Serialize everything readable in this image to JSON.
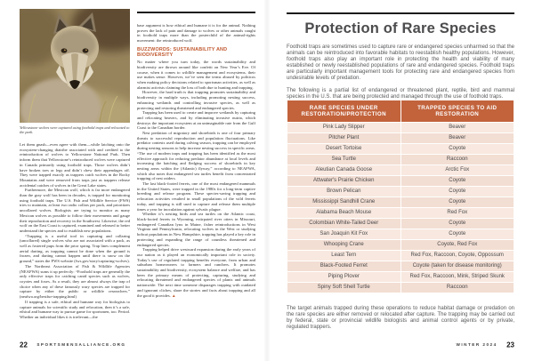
{
  "colors": {
    "accent_orange": "#c2633c",
    "heading_orange": "#c0582e",
    "table_row_peach": "#f8e8df",
    "table_row_peach_alt": "#f3ded3",
    "rule_black": "#1b1b1b"
  },
  "left_page": {
    "photo_caption": "Yellowstone wolves were captured using foothold traps and relocated to the park.",
    "column1": {
      "paragraphs": [
        "Let them gnash—even agree with them—while latching onto the ecosystem-changing diatribe associated with and credited to the reintroduction of wolves to Yellowstone National Park. Then inform them that Yellowstone’s reintroduced wolves were captured in Canada primarily using foothold traps. Those wolves didn’t have broken toes or legs and didn’t chew their appendages off. They were trapped exactly as trappers catch wolves in the Rocky Mountains and were removed from traps just as trappers release accidental catches of wolves in the Great Lake states.",
        "Furthermore, the Mexican wolf, which is far more endangered than the gray wolf has been in decades, is trapped for monitoring using foothold traps. The U.S. Fish and Wildlife Service (FWS) tries to maintain, at least two radio collars per pack, and prioritizes uncollared wolves. Biologists are trying to monitor as many Mexican wolves as possible to follow their movements and gauge their reproduction and recovery in the Southwest. Likewise, the red wolf on the East Coast is captured, examined and released to better understand the species and to establish new populations.",
        "“Trapping is a useful tool in capturing and collaring (uncollared) single wolves who are not associated with a pack, as well as fostered pups from the prior spring. Trap lines complement aerial darting, as trapping cannot be done when the ground is frozen, and darting cannot happen until there is snow on the ground,” states the FWS website (fws.gov/story/capturing-wolves).",
        "The Northeast Association of Fish & Wildlife Agencies (NEAFWA) sums it up perfectly: “Foothold traps are generally the only effective traps for catching canid species such as wolves, coyotes and foxes. As a result, they are almost always the trap of choice when any of these famously wary species are trapped for capture by either the public or wildlife researchers.” (neafwa.org/bestfur-trapping.html)",
        "If trapping is a safe, ethical and humane way for biologists to capture animals for scientific study and relocation, then it’s a safe, ethical and humane way to pursue game for sportsmen, too. Period. Whether an individual likes it is irrelevant—the"
      ]
    },
    "column2": {
      "lead_paragraph": "base argument is how ethical and humane it is for the animal. Nothing proves the lack of pain and damage to wolves or other animals caught in foothold traps more than the posterchild of the animal-rights movement: the reintroduced wolf.",
      "heading": "BUZZWORDS: SUSTAINABILITY AND BIODIVERSITY",
      "paragraphs": [
        "No matter where you turn today, the words sustainability and biodiversity are thrown around like confetti on New Year’s Eve. Of course, when it comes to wildlife management and ecosystems, their use makes sense. However, we’ve seen the terms abused by politicos when making policy decisions related to sportsman activities, as well as alarmist activists claiming the loss of both due to hunting and trapping.",
        "However, the hard truth is that trapping promotes sustainability and biodiversity in multiple ways, including promoting nesting success, enhancing wetlands and controlling invasive species, as well as protecting and restoring threatened and endangered species.",
        "Trapping has been used to create and improve wetlands by capturing and relocating beavers, and by eliminating invasive nutria, which destroys the important ecosystem at an unimaginable rate from the Gulf Coast to the Canadian border.",
        "Nest predation of migratory and shorebirds is one of four primary threats to successful reproduction and population fluctuations. Like predator contests used during calving season, trapping can be employed during nesting seasons to help increase nesting success in specific areas. “The use of modern traps and trapping has been identified as the most effective approach for reducing predator abundance at local levels and increasing the hatching and fledging success of shorebirds in key nesting areas within the (Atlantic) flyway,” according to NEAFWA, which also notes that endangered sea turtles benefit from concentrated trapping of nest raiders.",
        "The last black-footed ferrets, one of the most endangered mammals in the United States, were trapped in the 1980s for a long-term captive breeding and release program. These species-saving trapping and relocation activities resulted in small populations of the wild ferrets today, and trapping is still used to capture and release them multiple times a year for inoculation against sylvatic plague.",
        "Whether it’s nesting birds and sea turtles on the Atlantic coast, black-footed ferrets in Wyoming, extirpated river otters in Missouri, endangered Canadian lynx in Maine, fisher reintroductions in West Virginia and Pennsylvania, relocating wolves in the West or studying bobcat populations in New Hampshire, trapping has played a key role in protecting and expanding the range of countless threatened and endangered species.",
        "Trapping helped drive westward expansion during the early years of our nation as it played an economically important role in society. Today’s use of regulated trapping benefits everyone, from urban and suburban homeowners to farmers and ranchers. It promotes sustainability and biodiversity, ecosystem balance and welfare, and has been the primary means of protecting, capturing, studying and relocating threatened and endangered species of plants and animals nationwide. The next time someone disparages trapping with outdated and ignorant cliches, share the stories and facts about trapping and all the good it provides."
      ],
      "end_mark": "▲"
    },
    "footer": {
      "page_number": "22",
      "site": "SPORTSMENSALLIANCE.ORG"
    }
  },
  "right_page": {
    "title": "Protection of Rare Species",
    "intro": {
      "paragraph1": "Foothold traps are sometimes used to capture rare or endangered species unharmed so that the animals can be reintroduced into favorable habitats to reestablish healthy populations. However, foothold traps also play an important role in protecting the health and viability of many established or newly reestablished populations of rare and endangered species. Foothold traps are particularly important management tools for protecting rare and endangered species from undesirable levels of predation.",
      "paragraph2": "The following is a partial list of endangered or threatened plant, reptile, bird and mammal species in the U.S. that are being protected and managed through the use of foothold traps."
    },
    "table": {
      "headers": [
        "RARE SPECIES UNDER RESTORATION/PROTECTION",
        "TRAPPED SPECIES TO AID RESTORATION"
      ],
      "rows": [
        [
          "Pink Lady Slipper",
          "Beaver"
        ],
        [
          "Pitcher Plant",
          "Beaver"
        ],
        [
          "Desert Tortoise",
          "Coyote"
        ],
        [
          "Sea Turtle",
          "Raccoon"
        ],
        [
          "Aleutian Canada Goose",
          "Arctic Fox"
        ],
        [
          "Attwater's Prairie Chicken",
          "Coyote"
        ],
        [
          "Brown Pelican",
          "Coyote"
        ],
        [
          "Mississippi Sandhill Crane",
          "Coyote"
        ],
        [
          "Alabama Beach Mouse",
          "Red Fox"
        ],
        [
          "Colombian White-Tailed Deer",
          "Coyote"
        ],
        [
          "San Joaquin Kit Fox",
          "Coyote"
        ],
        [
          "Whooping Crane",
          "Coyote, Red Fox"
        ],
        [
          "Least Tern",
          "Red Fox, Raccoon, Coyote, Oppossum"
        ],
        [
          "Black-Footed Ferret",
          "Coyote (taken for disease monitoring)"
        ],
        [
          "Piping Plover",
          "Red Fox, Raccoon, Mink, Striped Skunk"
        ],
        [
          "Spiny Soft Shell Turtle",
          "Raccoon"
        ]
      ]
    },
    "footnote": "The target animals trapped during these operations to reduce habitat damage or predation on the rare species are either removed or relocated after capture. The trapping may be carried out by federal, state or provincial wildlife biologists and animal control agents or by private, regulated trappers.",
    "footer": {
      "season": "WINTER 2024",
      "page_number": "23"
    }
  }
}
